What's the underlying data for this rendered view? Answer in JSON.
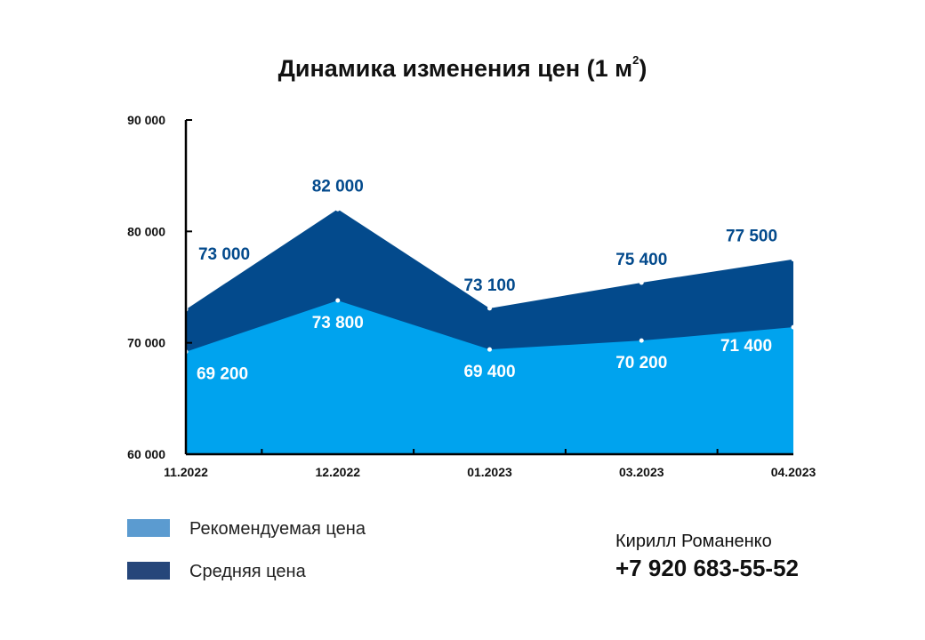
{
  "title_main": "Динамика изменения цен (1 м",
  "title_sup": "2",
  "title_close": ")",
  "colors": {
    "average": "#034a8c",
    "recommended": "#00a3ee",
    "average_label": "#034a8c",
    "recommended_label": "#ffffff",
    "legend_recommended": "#5b9bd0",
    "legend_average": "#26467a"
  },
  "chart_data": {
    "type": "area",
    "title": "Динамика изменения цен (1 м²)",
    "categories": [
      "11.2022",
      "12.2022",
      "01.2023",
      "03.2023",
      "04.2023"
    ],
    "series": [
      {
        "name": "Средняя цена",
        "values": [
          73000,
          82000,
          73100,
          75400,
          77500
        ],
        "labels": [
          "73 000",
          "82 000",
          "73 100",
          "75 400",
          "77 500"
        ]
      },
      {
        "name": "Рекомендуемая цена",
        "values": [
          69200,
          73800,
          69400,
          70200,
          71400
        ],
        "labels": [
          "69 200",
          "73 800",
          "69 400",
          "70 200",
          "71 400"
        ]
      }
    ],
    "ylim": [
      60000,
      90000
    ],
    "yticks": [
      60000,
      70000,
      80000,
      90000
    ],
    "ytick_labels": [
      "60 000",
      "70 000",
      "80 000",
      "90 000"
    ],
    "grid": false,
    "legend_position": "bottom-left"
  },
  "legend": {
    "recommended": "Рекомендуемая цена",
    "average": "Средняя цена"
  },
  "contact": {
    "name": "Кирилл Романенко",
    "phone": "+7 920 683-55-52"
  }
}
